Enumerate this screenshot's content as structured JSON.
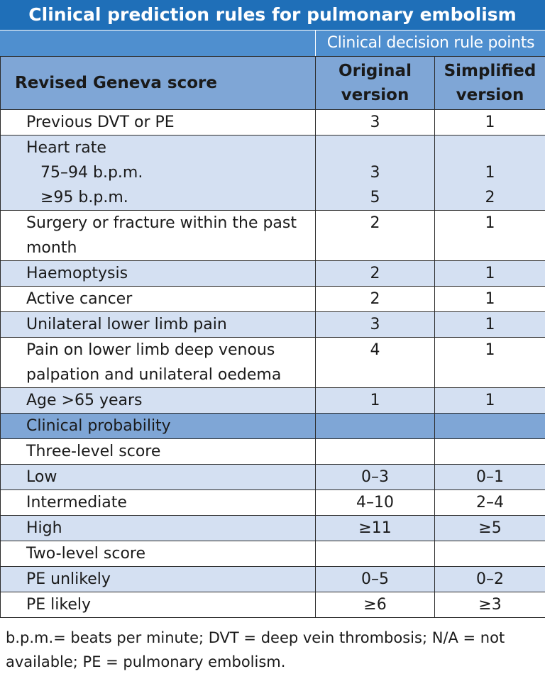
{
  "title": "Clinical prediction rules for pulmonary embolism",
  "subheader": "Clinical decision rule points",
  "columns": {
    "label": "Revised Geneva score",
    "original_line1": "Original",
    "original_line2": "version",
    "simplified_line1": "Simplified",
    "simplified_line2": "version"
  },
  "rows": [
    {
      "label": "Previous DVT or PE",
      "original": "3",
      "simplified": "1"
    },
    {
      "label": "Heart rate",
      "sub1": "75–94 b.p.m.",
      "sub2": "≥95 b.p.m.",
      "original1": "3",
      "original2": "5",
      "simplified1": "1",
      "simplified2": "2"
    },
    {
      "label": "Surgery or fracture within the past month",
      "original": "2",
      "simplified": "1"
    },
    {
      "label": "Haemoptysis",
      "original": "2",
      "simplified": "1"
    },
    {
      "label": "Active cancer",
      "original": "2",
      "simplified": "1"
    },
    {
      "label": "Unilateral lower limb pain",
      "original": "3",
      "simplified": "1"
    },
    {
      "label": "Pain on lower limb deep venous palpation and unilateral oedema",
      "original": "4",
      "simplified": "1"
    },
    {
      "label": "Age >65 years",
      "original": "1",
      "simplified": "1"
    },
    {
      "label": "Clinical probability",
      "original": "",
      "simplified": ""
    },
    {
      "label": "Three-level score",
      "original": "",
      "simplified": ""
    },
    {
      "label": "Low",
      "original": "0–3",
      "simplified": "0–1"
    },
    {
      "label": "Intermediate",
      "original": "4–10",
      "simplified": "2–4"
    },
    {
      "label": "High",
      "original": "≥11",
      "simplified": "≥5"
    },
    {
      "label": "Two-level score",
      "original": "",
      "simplified": ""
    },
    {
      "label": "PE unlikely",
      "original": "0–5",
      "simplified": "0–2"
    },
    {
      "label": "PE likely",
      "original": "≥6",
      "simplified": "≥3"
    }
  ],
  "footnote": "b.p.m.= beats per minute; DVT = deep vein thrombosis; N/A = not available; PE = pulmonary embolism.",
  "colors": {
    "title_bg": "#1f6fb8",
    "subheader_bg": "#4f8fcf",
    "header_bg": "#7fa6d6",
    "band_bg": "#d4e0f2"
  }
}
